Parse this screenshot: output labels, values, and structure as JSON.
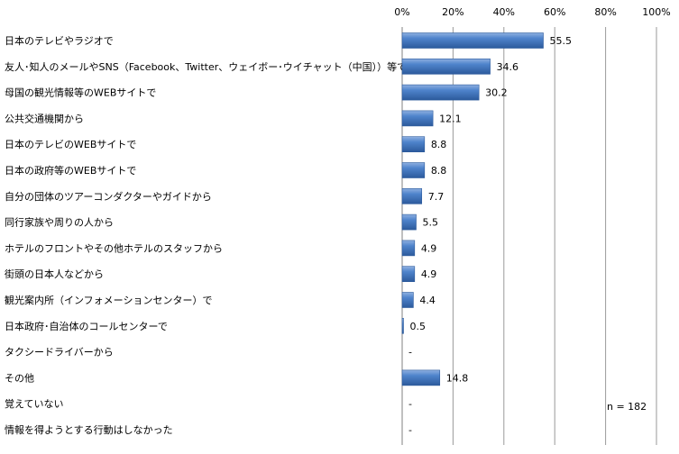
{
  "chart_data": {
    "type": "bar",
    "orientation": "horizontal",
    "categories": [
      "日本のテレビやラジオで",
      "友人･知人のメールやSNS（Facebook、Twitter、ウェイボー･ウイチャット（中国））等で",
      "母国の観光情報等のWEBサイトで",
      "公共交通機関から",
      "日本のテレビのWEBサイトで",
      "日本の政府等のWEBサイトで",
      "自分の団体のツアーコンダクターやガイドから",
      "同行家族や周りの人から",
      "ホテルのフロントやその他ホテルのスタッフから",
      "街頭の日本人などから",
      "観光案内所（インフォメーションセンター）で",
      "日本政府･自治体のコールセンターで",
      "タクシードライバーから",
      "その他",
      "覚えていない",
      "情報を得ようとする行動はしなかった"
    ],
    "values": [
      55.5,
      34.6,
      30.2,
      12.1,
      8.8,
      8.8,
      7.7,
      5.5,
      4.9,
      4.9,
      4.4,
      0.5,
      null,
      14.8,
      null,
      null
    ],
    "data_labels": [
      "55.5",
      "34.6",
      "30.2",
      "12.1",
      "8.8",
      "8.8",
      "7.7",
      "5.5",
      "4.9",
      "4.9",
      "4.4",
      "0.5",
      "-",
      "14.8",
      "-",
      "-"
    ],
    "x_ticks": [
      "0%",
      "20%",
      "40%",
      "60%",
      "80%",
      "100%"
    ],
    "xlim": [
      0,
      100
    ],
    "axis_position": "top",
    "grid": true,
    "bar_color": "#4a7ebb",
    "note": "n = 182"
  }
}
